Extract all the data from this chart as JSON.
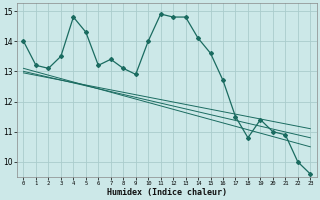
{
  "title": "",
  "xlabel": "Humidex (Indice chaleur)",
  "ylabel": "",
  "bg_color": "#cce8e8",
  "grid_color": "#aacccc",
  "line_color": "#1a6b60",
  "xlim": [
    -0.5,
    23.5
  ],
  "ylim": [
    9.5,
    15.25
  ],
  "yticks": [
    10,
    11,
    12,
    13,
    14,
    15
  ],
  "xticks": [
    0,
    1,
    2,
    3,
    4,
    5,
    6,
    7,
    8,
    9,
    10,
    11,
    12,
    13,
    14,
    15,
    16,
    17,
    18,
    19,
    20,
    21,
    22,
    23
  ],
  "main_x": [
    0,
    1,
    2,
    3,
    4,
    5,
    6,
    7,
    8,
    9,
    10,
    11,
    12,
    13,
    14,
    15,
    16,
    17,
    18,
    19,
    20,
    21,
    22,
    23
  ],
  "main_y": [
    14.0,
    13.2,
    13.1,
    13.5,
    14.8,
    14.3,
    13.2,
    13.4,
    13.1,
    12.9,
    14.0,
    14.9,
    14.8,
    14.8,
    14.1,
    13.6,
    12.7,
    11.5,
    10.8,
    11.4,
    11.0,
    10.9,
    10.0,
    9.6
  ],
  "line2_x": [
    0,
    23
  ],
  "line2_y": [
    13.1,
    10.5
  ],
  "line3_x": [
    0,
    23
  ],
  "line3_y": [
    13.0,
    10.8
  ],
  "line4_x": [
    0,
    23
  ],
  "line4_y": [
    12.95,
    11.1
  ]
}
